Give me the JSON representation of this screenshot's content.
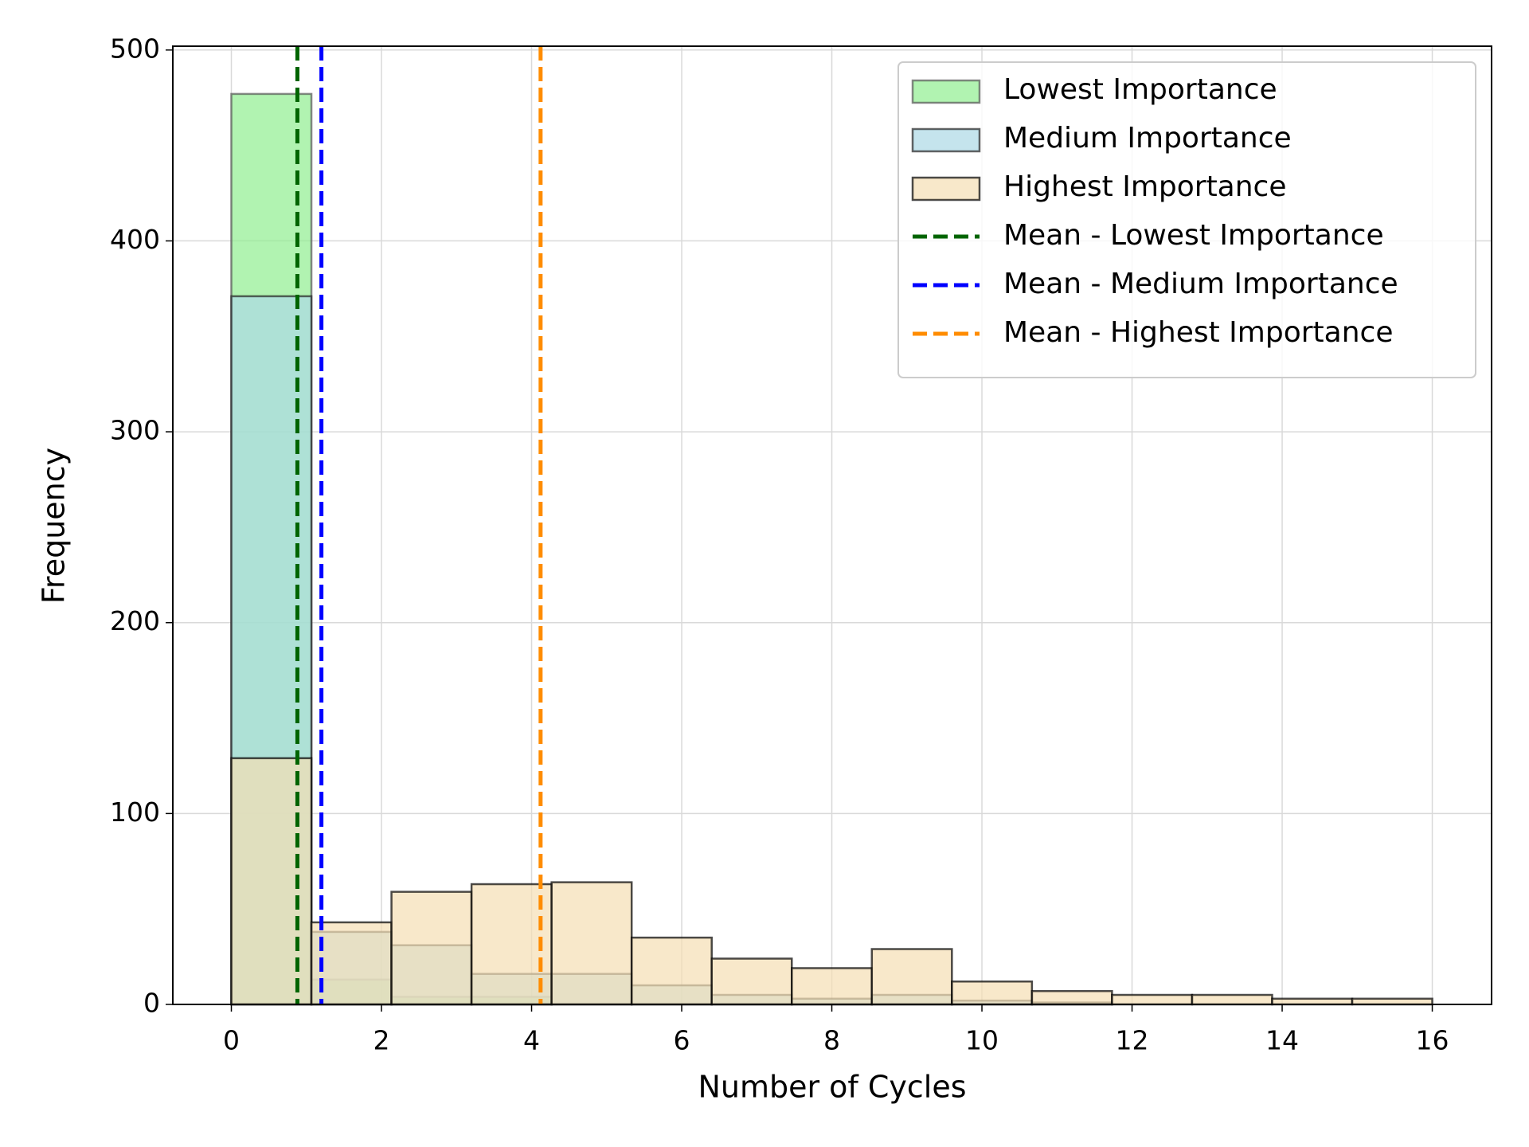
{
  "chart_data": {
    "type": "histogram",
    "x_label": "Number of Cycles",
    "y_label": "Frequency",
    "bins": [
      0,
      1.0667,
      2.1333,
      3.2,
      4.2667,
      5.3333,
      6.4,
      7.4667,
      8.5333,
      9.6,
      10.6667,
      11.7333,
      12.8,
      13.8667,
      14.9333,
      16
    ],
    "series": [
      {
        "name": "Lowest Importance",
        "color": "#90ee90",
        "edge_color": "#555555",
        "alpha": 0.7,
        "values": [
          477,
          13,
          4,
          4,
          0,
          0,
          0,
          0,
          0,
          0,
          0,
          0,
          0,
          0,
          0
        ]
      },
      {
        "name": "Medium Importance",
        "color": "#add8e6",
        "edge_color": "#222222",
        "alpha": 0.7,
        "values": [
          371,
          38,
          31,
          16,
          16,
          10,
          5,
          3,
          5,
          2,
          1,
          0,
          0,
          0,
          0
        ]
      },
      {
        "name": "Highest Importance",
        "color": "#f5deb3",
        "edge_color": "#000000",
        "alpha": 0.7,
        "values": [
          129,
          43,
          59,
          63,
          64,
          35,
          24,
          19,
          29,
          12,
          7,
          5,
          5,
          3,
          3
        ]
      }
    ],
    "mean_lines": [
      {
        "name": "Mean - Lowest Importance",
        "color": "#006400",
        "value": 0.88
      },
      {
        "name": "Mean - Medium Importance",
        "color": "#0000ff",
        "value": 1.2
      },
      {
        "name": "Mean - Highest Importance",
        "color": "#ff8c00",
        "value": 4.12
      }
    ],
    "xlim": [
      -0.78,
      16.79
    ],
    "ylim": [
      0,
      502
    ],
    "xticks": [
      0,
      2,
      4,
      6,
      8,
      10,
      12,
      14,
      16
    ],
    "yticks": [
      0,
      100,
      200,
      300,
      400,
      500
    ],
    "grid": true,
    "legend_position": "upper-right"
  }
}
